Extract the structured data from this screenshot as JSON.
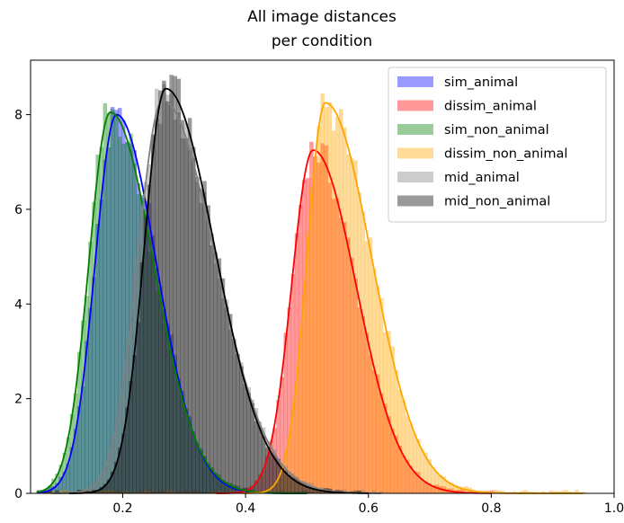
{
  "chart_data": {
    "type": "histogram",
    "title": [
      "All image distances",
      "per condition"
    ],
    "xlabel": "",
    "ylabel": "",
    "xlim": [
      0.05,
      1.0
    ],
    "ylim": [
      0,
      9.15
    ],
    "xticks": [
      0.2,
      0.4,
      0.6,
      0.8,
      1.0
    ],
    "xtick_labels": [
      "0.2",
      "0.4",
      "0.6",
      "0.8",
      "1.0"
    ],
    "yticks": [
      0,
      2,
      4,
      6,
      8
    ],
    "ytick_labels": [
      "0",
      "2",
      "4",
      "6",
      "8"
    ],
    "grid": false,
    "legend_position": "upper right",
    "series": [
      {
        "name": "sim_animal",
        "color": "#0000ff",
        "fill": "rgba(0,0,255,0.4)",
        "mean": 0.19,
        "sd_left": 0.035,
        "sd_right": 0.065,
        "peak": 8.0,
        "tail_end": 0.5
      },
      {
        "name": "dissim_animal",
        "color": "#ff0000",
        "fill": "rgba(255,0,0,0.4)",
        "mean": 0.51,
        "sd_left": 0.035,
        "sd_right": 0.07,
        "peak": 7.25,
        "tail_end": 0.8
      },
      {
        "name": "sim_non_animal",
        "color": "#008000",
        "fill": "rgba(0,128,0,0.4)",
        "mean": 0.18,
        "sd_left": 0.035,
        "sd_right": 0.07,
        "peak": 8.05,
        "tail_end": 0.5
      },
      {
        "name": "dissim_non_animal",
        "color": "#ffa500",
        "fill": "rgba(255,165,0,0.4)",
        "mean": 0.53,
        "sd_left": 0.03,
        "sd_right": 0.075,
        "peak": 8.25,
        "tail_end": 0.95
      },
      {
        "name": "mid_animal",
        "color": "#808080",
        "fill": "rgba(128,128,128,0.4)",
        "mean": 0.265,
        "sd_left": 0.04,
        "sd_right": 0.085,
        "peak": 8.3,
        "tail_end": 0.62
      },
      {
        "name": "mid_non_animal",
        "color": "#000000",
        "fill": "rgba(0,0,0,0.4)",
        "mean": 0.27,
        "sd_left": 0.035,
        "sd_right": 0.08,
        "peak": 8.55,
        "tail_end": 0.6
      }
    ]
  }
}
